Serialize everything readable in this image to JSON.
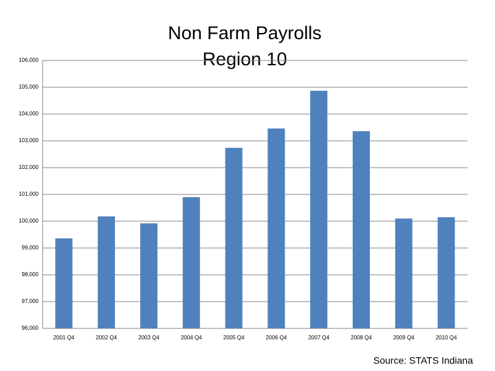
{
  "chart_data": {
    "type": "bar",
    "title": [
      "Non Farm Payrolls",
      "Region 10"
    ],
    "categories": [
      "2001 Q4",
      "2002 Q4",
      "2003 Q4",
      "2004 Q4",
      "2005 Q4",
      "2006 Q4",
      "2007 Q4",
      "2008 Q4",
      "2009 Q4",
      "2010 Q4"
    ],
    "values": [
      99360,
      100180,
      99920,
      100900,
      102740,
      103460,
      104870,
      103360,
      100100,
      100150
    ],
    "color": "#4f81bd",
    "ylim": [
      96000,
      106000
    ],
    "yticks": [
      {
        "value": 96000,
        "label": "96,000"
      },
      {
        "value": 97000,
        "label": "97,000"
      },
      {
        "value": 98000,
        "label": "98,000"
      },
      {
        "value": 99000,
        "label": "99,000"
      },
      {
        "value": 100000,
        "label": "100,000"
      },
      {
        "value": 101000,
        "label": "101,000"
      },
      {
        "value": 102000,
        "label": "102,000"
      },
      {
        "value": 103000,
        "label": "103,000"
      },
      {
        "value": 104000,
        "label": "104,000"
      },
      {
        "value": 105000,
        "label": "105,000"
      },
      {
        "value": 106000,
        "label": "106,000"
      }
    ],
    "grid": true,
    "source": "Source:  STATS Indiana"
  }
}
